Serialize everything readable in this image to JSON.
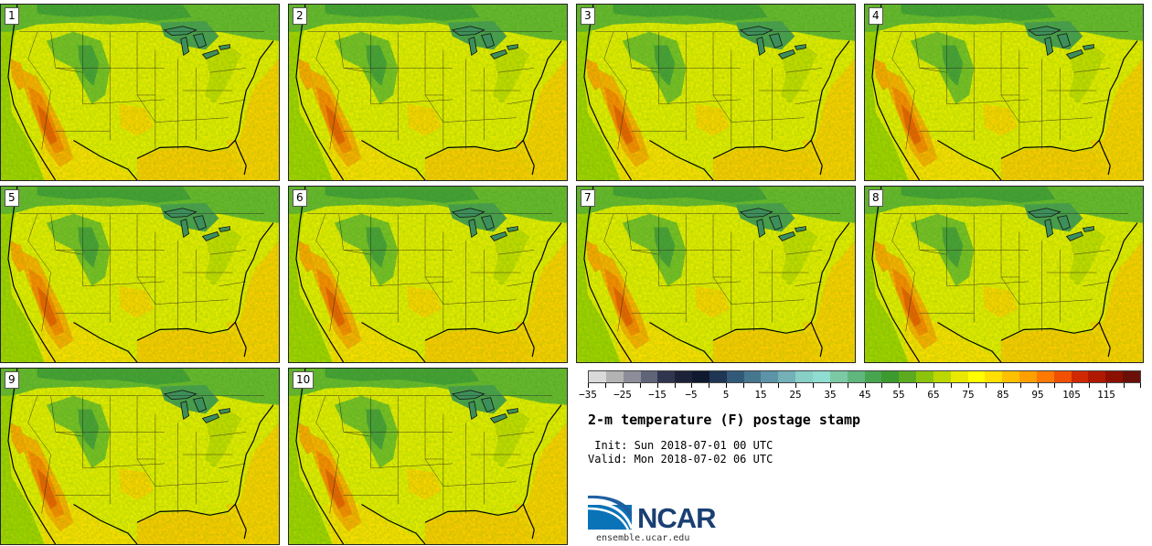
{
  "panels": [
    "1",
    "2",
    "3",
    "4",
    "5",
    "6",
    "7",
    "8",
    "9",
    "10"
  ],
  "colorbar": {
    "colors": [
      "#d9d9d9",
      "#b3b3b3",
      "#8d8d9a",
      "#5f6478",
      "#303650",
      "#1c2238",
      "#0f1a30",
      "#1e3554",
      "#325a78",
      "#47768f",
      "#5c93a6",
      "#73b0b8",
      "#88cfc7",
      "#8fdcd0",
      "#7cc9a5",
      "#5fb77e",
      "#48a54f",
      "#3d9a2e",
      "#5cab1e",
      "#8cc40c",
      "#bbd600",
      "#e8e800",
      "#ffff00",
      "#ffe000",
      "#ffc000",
      "#ffa000",
      "#ff7800",
      "#f05000",
      "#d02800",
      "#b01800",
      "#8c1000",
      "#6a1008"
    ],
    "tick_labels": [
      "−35",
      "−25",
      "−15",
      "−5",
      "5",
      "15",
      "25",
      "35",
      "45",
      "55",
      "65",
      "75",
      "85",
      "95",
      "105",
      "115"
    ]
  },
  "title": "2-m temperature (F) postage stamp",
  "init_text": " Init: Sun 2018-07-01 00 UTC",
  "valid_text": "Valid: Mon 2018-07-02 06 UTC",
  "logo": {
    "text": "NCAR",
    "url": "ensemble.ucar.edu"
  }
}
